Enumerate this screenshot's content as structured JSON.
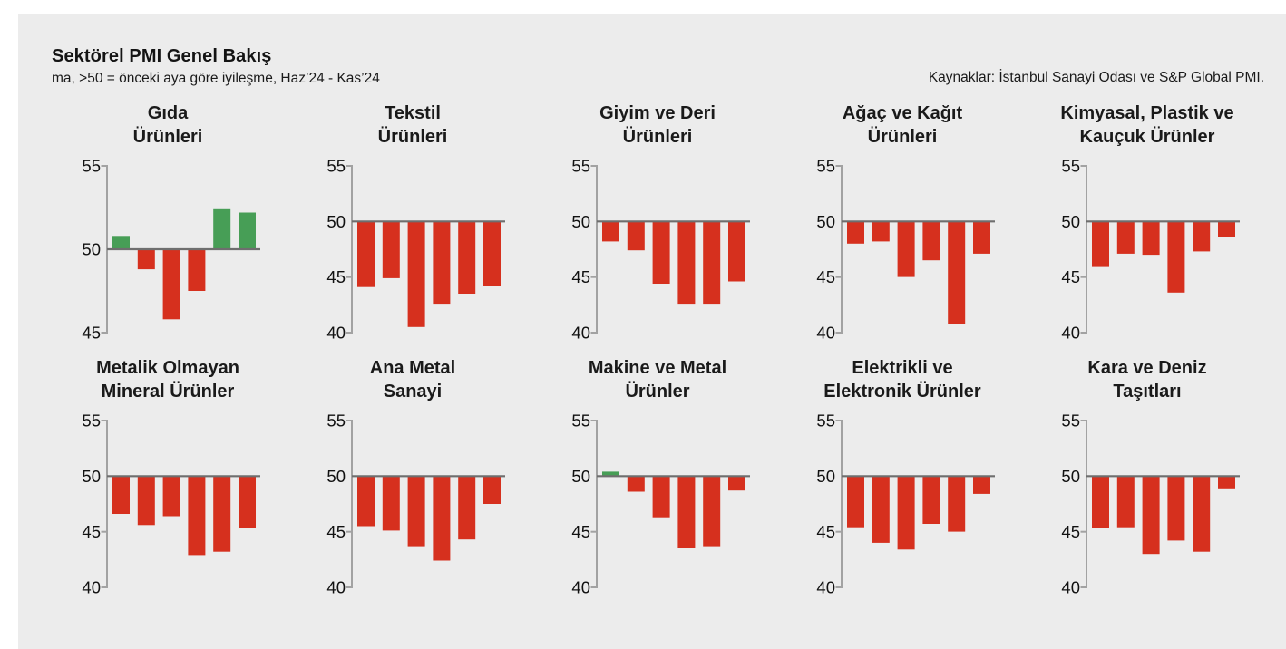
{
  "chart_data": {
    "type": "bar",
    "title": "Sektörel PMI Genel Bakış",
    "subtitle": "ma, >50 = önceki aya göre iyileşme, Haz’24 - Kas’24",
    "source": "Kaynaklar: İstanbul Sanayi Odası ve S&P Global PMI.",
    "baseline": 50,
    "points_per_chart": 6,
    "period": "Haz’24 - Kas’24",
    "colors": {
      "positive": "#479e56",
      "negative": "#d6301e",
      "panel_background": "#ececec",
      "page_background": "#ffffff",
      "zero_line": "#6e6e6e",
      "axis": "#a2a2a2"
    },
    "layout": {
      "grid": "2 rows x 5 columns",
      "gridlines": false,
      "legend": "none"
    },
    "charts": [
      {
        "title": [
          "Gıda",
          "Ürünleri"
        ],
        "ylim": [
          45,
          55
        ],
        "yticks": [
          45,
          50,
          55
        ],
        "values": [
          50.8,
          48.8,
          45.8,
          47.5,
          52.4,
          52.2
        ]
      },
      {
        "title": [
          "Tekstil",
          "Ürünleri"
        ],
        "ylim": [
          40,
          55
        ],
        "yticks": [
          40,
          45,
          50,
          55
        ],
        "values": [
          44.1,
          44.9,
          40.5,
          42.6,
          43.5,
          44.2
        ]
      },
      {
        "title": [
          "Giyim ve Deri",
          "Ürünleri"
        ],
        "ylim": [
          40,
          55
        ],
        "yticks": [
          40,
          45,
          50,
          55
        ],
        "values": [
          48.2,
          47.4,
          44.4,
          42.6,
          42.6,
          44.6
        ]
      },
      {
        "title": [
          "Ağaç ve Kağıt",
          "Ürünleri"
        ],
        "ylim": [
          40,
          55
        ],
        "yticks": [
          40,
          45,
          50,
          55
        ],
        "values": [
          48.0,
          48.2,
          45.0,
          46.5,
          40.8,
          47.1
        ]
      },
      {
        "title": [
          "Kimyasal, Plastik ve",
          "Kauçuk Ürünler"
        ],
        "ylim": [
          40,
          55
        ],
        "yticks": [
          40,
          45,
          50,
          55
        ],
        "values": [
          45.9,
          47.1,
          47.0,
          43.6,
          47.3,
          48.6
        ]
      },
      {
        "title": [
          "Metalik Olmayan",
          "Mineral Ürünler"
        ],
        "ylim": [
          40,
          55
        ],
        "yticks": [
          40,
          45,
          50,
          55
        ],
        "values": [
          46.6,
          45.6,
          46.4,
          42.9,
          43.2,
          45.3
        ]
      },
      {
        "title": [
          "Ana Metal",
          "Sanayi"
        ],
        "ylim": [
          40,
          55
        ],
        "yticks": [
          40,
          45,
          50,
          55
        ],
        "values": [
          45.5,
          45.1,
          43.7,
          42.4,
          44.3,
          47.5
        ]
      },
      {
        "title": [
          "Makine ve Metal",
          "Ürünler"
        ],
        "ylim": [
          40,
          55
        ],
        "yticks": [
          40,
          45,
          50,
          55
        ],
        "values": [
          50.4,
          48.6,
          46.3,
          43.5,
          43.7,
          48.7
        ]
      },
      {
        "title": [
          "Elektrikli ve",
          "Elektronik Ürünler"
        ],
        "ylim": [
          40,
          55
        ],
        "yticks": [
          40,
          45,
          50,
          55
        ],
        "values": [
          45.4,
          44.0,
          43.4,
          45.7,
          45.0,
          48.4
        ]
      },
      {
        "title": [
          "Kara ve Deniz",
          "Taşıtları"
        ],
        "ylim": [
          40,
          55
        ],
        "yticks": [
          40,
          45,
          50,
          55
        ],
        "values": [
          45.3,
          45.4,
          43.0,
          44.2,
          43.2,
          48.9
        ]
      }
    ]
  }
}
